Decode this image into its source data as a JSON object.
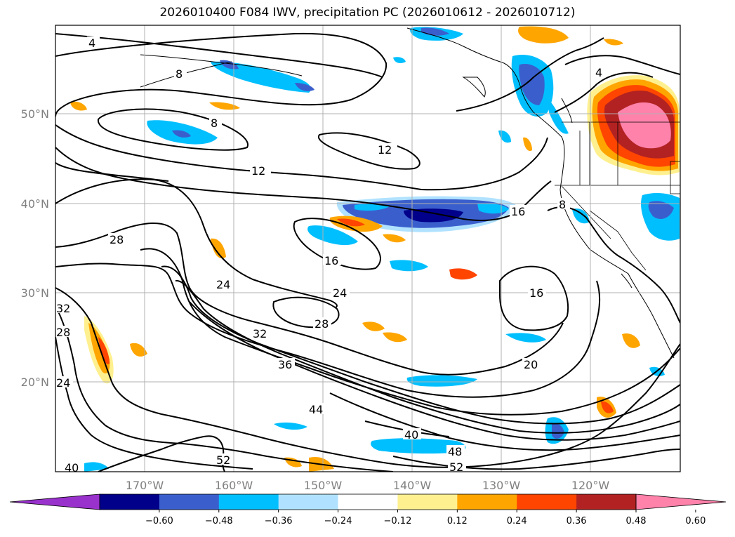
{
  "title": "2026010400 F084 IWV, precipitation PC (2026010612 - 2026010712)",
  "map": {
    "lon_labels": [
      "170°W",
      "160°W",
      "150°W",
      "140°W",
      "130°W",
      "120°W"
    ],
    "lat_labels": [
      "50°N",
      "40°N",
      "30°N",
      "20°N"
    ],
    "contour_labels": [
      "4",
      "8",
      "8",
      "12",
      "12",
      "16",
      "16",
      "16",
      "20",
      "24",
      "24",
      "28",
      "28",
      "28",
      "32",
      "32",
      "36",
      "40",
      "40",
      "44",
      "48",
      "52",
      "52",
      "24",
      "4",
      "8"
    ]
  },
  "colorbar": {
    "ticks": [
      "−0.60",
      "−0.48",
      "−0.36",
      "−0.24",
      "−0.12",
      "0.12",
      "0.24",
      "0.36",
      "0.48",
      "0.60"
    ],
    "colors": [
      "#9932cc",
      "#00008b",
      "#3a5fcd",
      "#00bfff",
      "#b0e2ff",
      "#ffffff",
      "#fff08f",
      "#ffa500",
      "#ff4500",
      "#b22222",
      "#ff82ab"
    ]
  }
}
